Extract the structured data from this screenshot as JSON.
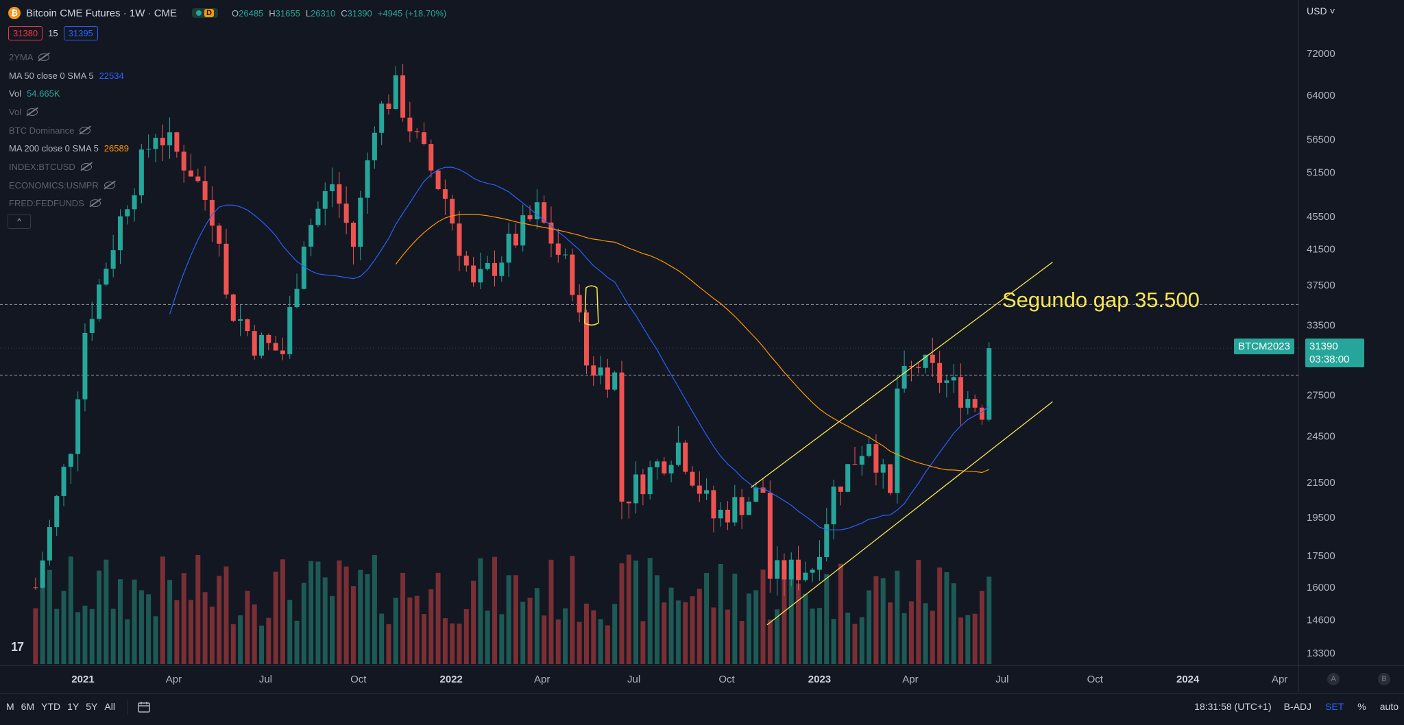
{
  "header": {
    "title": "Bitcoin CME Futures · 1W · CME",
    "data_badge": "D",
    "ohlc": [
      {
        "k": "O",
        "v": "26485"
      },
      {
        "k": "H",
        "v": "31655"
      },
      {
        "k": "L",
        "v": "26310"
      },
      {
        "k": "C",
        "v": "31390"
      },
      {
        "k": "",
        "v": "+4945 (+18.70%)"
      }
    ],
    "quote": {
      "bid": "31380",
      "spread": "15",
      "ask": "31395"
    }
  },
  "legend": [
    {
      "label": "2YMA",
      "value": "",
      "hidden": true
    },
    {
      "label": "MA 50 close 0 SMA 5",
      "value": "22534",
      "value_color": "#2962ff",
      "hidden": false
    },
    {
      "label": "Vol",
      "value": "54.665K",
      "value_color": "#26a69a",
      "hidden": false
    },
    {
      "label": "Vol",
      "value": "",
      "hidden": true
    },
    {
      "label": "BTC Dominance",
      "value": "",
      "hidden": true
    },
    {
      "label": "MA 200 close 0 SMA 5",
      "value": "26589",
      "value_color": "#ff9800",
      "hidden": false
    },
    {
      "label": "INDEX:BTCUSD",
      "value": "",
      "hidden": true
    },
    {
      "label": "ECONOMICS:USMPR",
      "value": "",
      "hidden": true
    },
    {
      "label": "FRED:FEDFUNDS",
      "value": "",
      "hidden": true
    }
  ],
  "collapse_icon": "^",
  "logo": "17",
  "price_axis": {
    "currency": "USD",
    "ticks": [
      "72000",
      "64000",
      "56500",
      "51500",
      "45500",
      "41500",
      "37500",
      "33500",
      "27500",
      "24500",
      "21500",
      "19500",
      "17500",
      "16000",
      "14600",
      "13300"
    ]
  },
  "last_price": {
    "symbol": "BTCM2023",
    "price": "31390",
    "countdown": "03:38:00"
  },
  "time_axis": {
    "ticks": [
      "2021",
      "Apr",
      "Jul",
      "Oct",
      "2022",
      "Apr",
      "Jul",
      "Oct",
      "2023",
      "Apr",
      "Jul",
      "Oct",
      "2024",
      "Apr"
    ]
  },
  "axis_buttons": {
    "a": "A",
    "b": "B"
  },
  "bottom_bar": {
    "ranges": [
      "M",
      "6M",
      "YTD",
      "1Y",
      "5Y",
      "All"
    ],
    "clock": "18:31:58 (UTC+1)",
    "adj": "B-ADJ",
    "session": "SET",
    "percent": "%",
    "auto": "auto"
  },
  "annotation": "Segundo gap 35.500",
  "colors": {
    "up": "#26a69a",
    "down": "#ef5350",
    "ma50": "#2962ff",
    "ma200": "#ff9800",
    "channel": "#f9e64f",
    "bg": "#131722"
  },
  "chart_data": {
    "type": "candlestick",
    "title": "Bitcoin CME Futures · 1W · CME",
    "scale": "log",
    "ylim": [
      12500,
      78000
    ],
    "x": [
      "2020-11",
      "2021-01",
      "2021-04",
      "2021-07",
      "2021-10",
      "2022-01",
      "2022-04",
      "2022-07",
      "2022-10",
      "2023-01",
      "2023-04",
      "2023-06",
      "2023-07",
      "2023-10",
      "2024-01",
      "2024-04"
    ],
    "close_path": [
      [
        "2020-11-15",
        16000
      ],
      [
        "2020-12-20",
        24000
      ],
      [
        "2021-01-03",
        33000
      ],
      [
        "2021-02-14",
        48000
      ],
      [
        "2021-03-14",
        58000
      ],
      [
        "2021-04-18",
        52000
      ],
      [
        "2021-05-16",
        44000
      ],
      [
        "2021-05-23",
        36000
      ],
      [
        "2021-06-20",
        32000
      ],
      [
        "2021-07-18",
        31000
      ],
      [
        "2021-08-08",
        43000
      ],
      [
        "2021-09-05",
        50000
      ],
      [
        "2021-09-26",
        42000
      ],
      [
        "2021-10-17",
        60000
      ],
      [
        "2021-11-07",
        65000
      ],
      [
        "2021-11-28",
        56000
      ],
      [
        "2021-12-26",
        48000
      ],
      [
        "2022-01-23",
        37000
      ],
      [
        "2022-03-27",
        46000
      ],
      [
        "2022-05-01",
        38000
      ],
      [
        "2022-05-15",
        30000
      ],
      [
        "2022-06-12",
        29000
      ],
      [
        "2022-06-19",
        20500
      ],
      [
        "2022-08-14",
        24000
      ],
      [
        "2022-09-18",
        19500
      ],
      [
        "2022-11-06",
        21000
      ],
      [
        "2022-11-13",
        16500
      ],
      [
        "2022-12-25",
        17000
      ],
      [
        "2023-01-15",
        21000
      ],
      [
        "2023-02-19",
        24500
      ],
      [
        "2023-03-12",
        20500
      ],
      [
        "2023-03-19",
        28000
      ],
      [
        "2023-04-09",
        30000
      ],
      [
        "2023-05-07",
        28500
      ],
      [
        "2023-06-11",
        26500
      ],
      [
        "2023-06-18",
        31390
      ]
    ],
    "ma50_last": 22534,
    "ma200_last": 26589,
    "volume_last": "54.665K",
    "reference_levels": [
      35500,
      29100,
      31390
    ],
    "annotations": [
      "Segundo gap 35.500"
    ]
  }
}
